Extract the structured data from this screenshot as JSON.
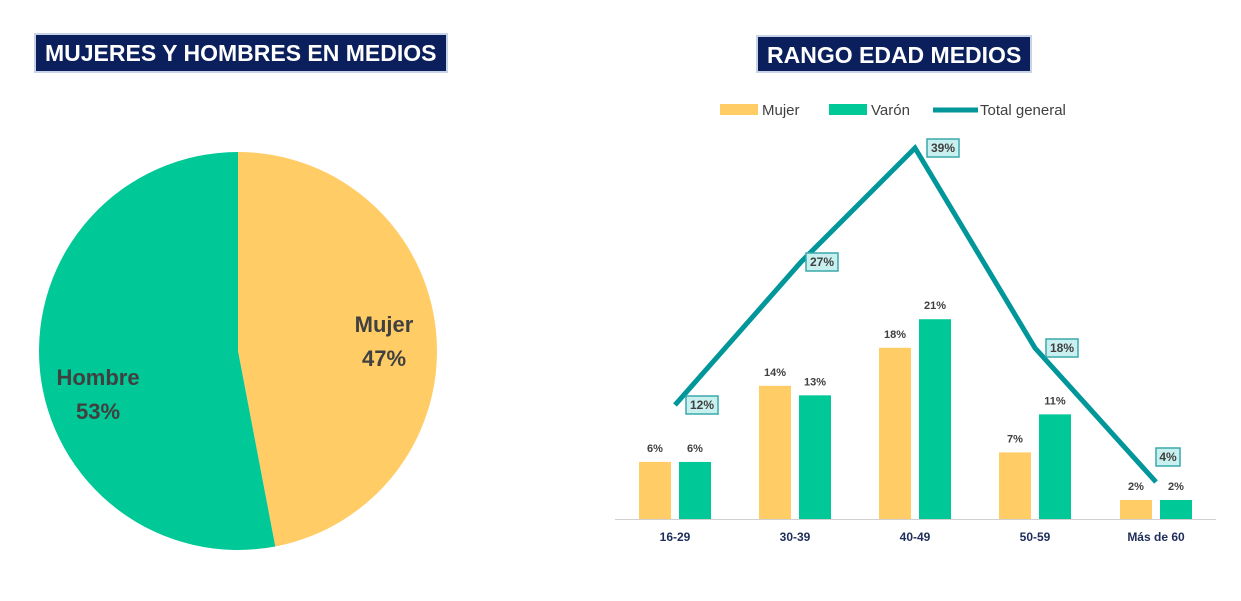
{
  "colors": {
    "mujer": "#ffcc66",
    "hombre": "#00c896",
    "total_line": "#00969a",
    "label_box_fill": "#c8f0ee",
    "label_box_stroke": "#3aa8ab",
    "title_bg": "#0b1f5c"
  },
  "chart_data": [
    {
      "type": "pie",
      "title": "MUJERES Y HOMBRES EN MEDIOS",
      "slices": [
        {
          "name": "Mujer",
          "value": 47,
          "label": "47%",
          "color": "#ffcc66"
        },
        {
          "name": "Hombre",
          "value": 53,
          "label": "53%",
          "color": "#00c896"
        }
      ]
    },
    {
      "type": "bar",
      "title": "RANGO EDAD MEDIOS",
      "categories": [
        "16-29",
        "30-39",
        "40-49",
        "50-59",
        "Más de 60"
      ],
      "series": [
        {
          "name": "Mujer",
          "type": "bar",
          "color": "#ffcc66",
          "values": [
            6,
            14,
            18,
            7,
            2
          ],
          "labels": [
            "6%",
            "14%",
            "18%",
            "7%",
            "2%"
          ]
        },
        {
          "name": "Varón",
          "type": "bar",
          "color": "#00c896",
          "values": [
            6,
            13,
            21,
            11,
            2
          ],
          "labels": [
            "6%",
            "13%",
            "21%",
            "11%",
            "2%"
          ]
        },
        {
          "name": "Total general",
          "type": "line",
          "color": "#00969a",
          "values": [
            12,
            27,
            39,
            18,
            4
          ],
          "labels": [
            "12%",
            "27%",
            "39%",
            "18%",
            "4%"
          ]
        }
      ],
      "legend_position": "top",
      "grid": false
    }
  ]
}
